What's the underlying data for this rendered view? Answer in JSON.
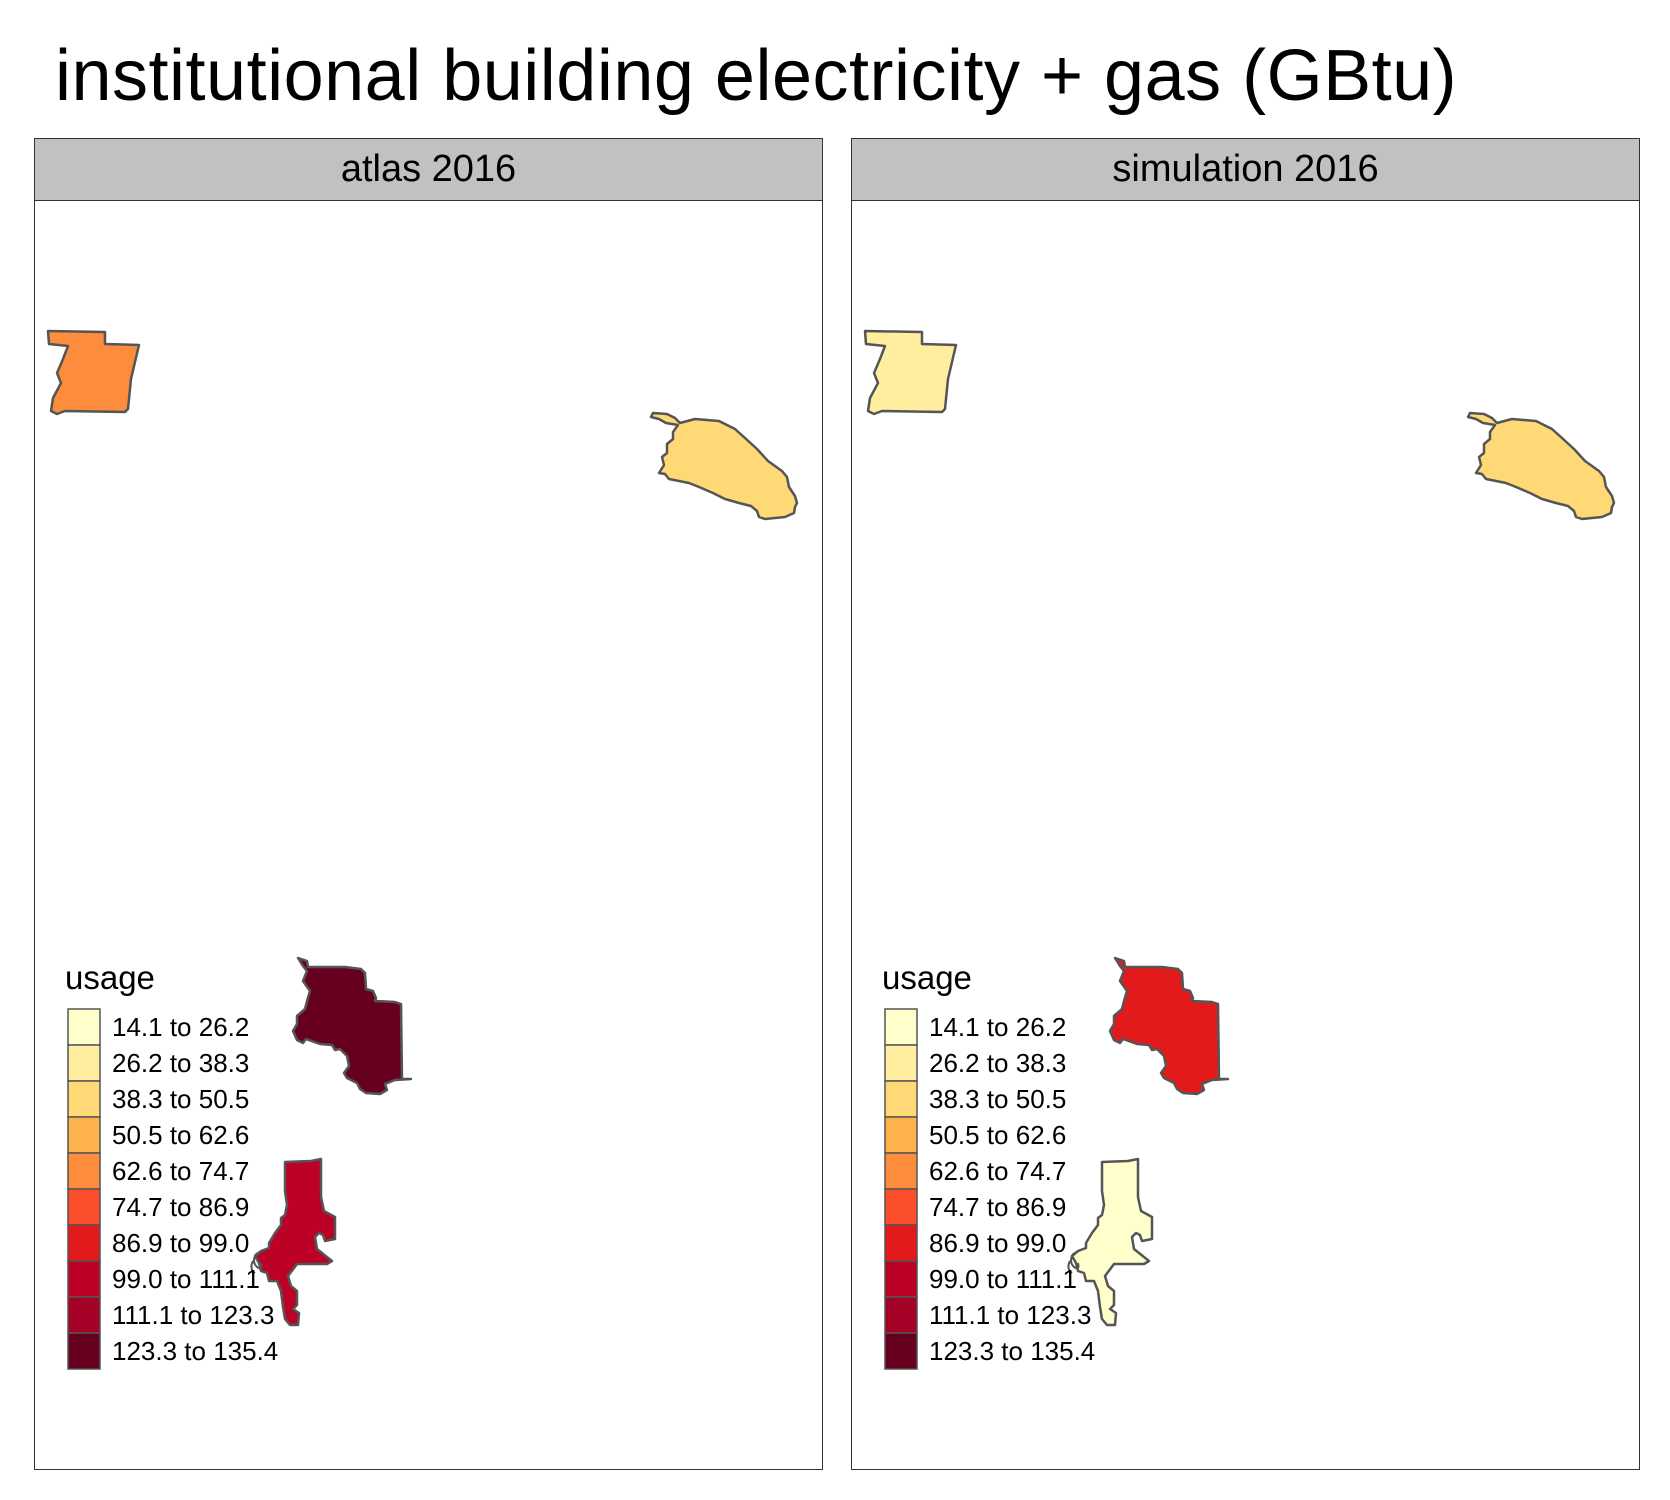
{
  "title": "institutional building electricity + gas (GBtu)",
  "legend": {
    "title": "usage",
    "classes": [
      {
        "label": "14.1 to 26.2",
        "color": "#FFFFCC"
      },
      {
        "label": "26.2 to 38.3",
        "color": "#FFEDA0"
      },
      {
        "label": "38.3 to 50.5",
        "color": "#FED976"
      },
      {
        "label": "50.5 to 62.6",
        "color": "#FEB24C"
      },
      {
        "label": "62.6 to 74.7",
        "color": "#FD8D3C"
      },
      {
        "label": "74.7 to 86.9",
        "color": "#FC4E2A"
      },
      {
        "label": "86.9 to 99.0",
        "color": "#E31A1C"
      },
      {
        "label": "99.0 to 111.1",
        "color": "#BD0026"
      },
      {
        "label": "111.1 to 123.3",
        "color": "#A50026"
      },
      {
        "label": "123.3 to 135.4",
        "color": "#67001F"
      }
    ]
  },
  "facets": [
    {
      "label": "atlas 2016",
      "regions": {
        "northwest": {
          "class": 4
        },
        "northeast": {
          "class": 2
        },
        "south-central": {
          "class": 9
        },
        "south": {
          "class": 7
        }
      }
    },
    {
      "label": "simulation 2016",
      "regions": {
        "northwest": {
          "class": 1
        },
        "northeast": {
          "class": 2
        },
        "south-central": {
          "class": 6
        },
        "south": {
          "class": 0
        }
      }
    }
  ],
  "outline_color": "#555555"
}
